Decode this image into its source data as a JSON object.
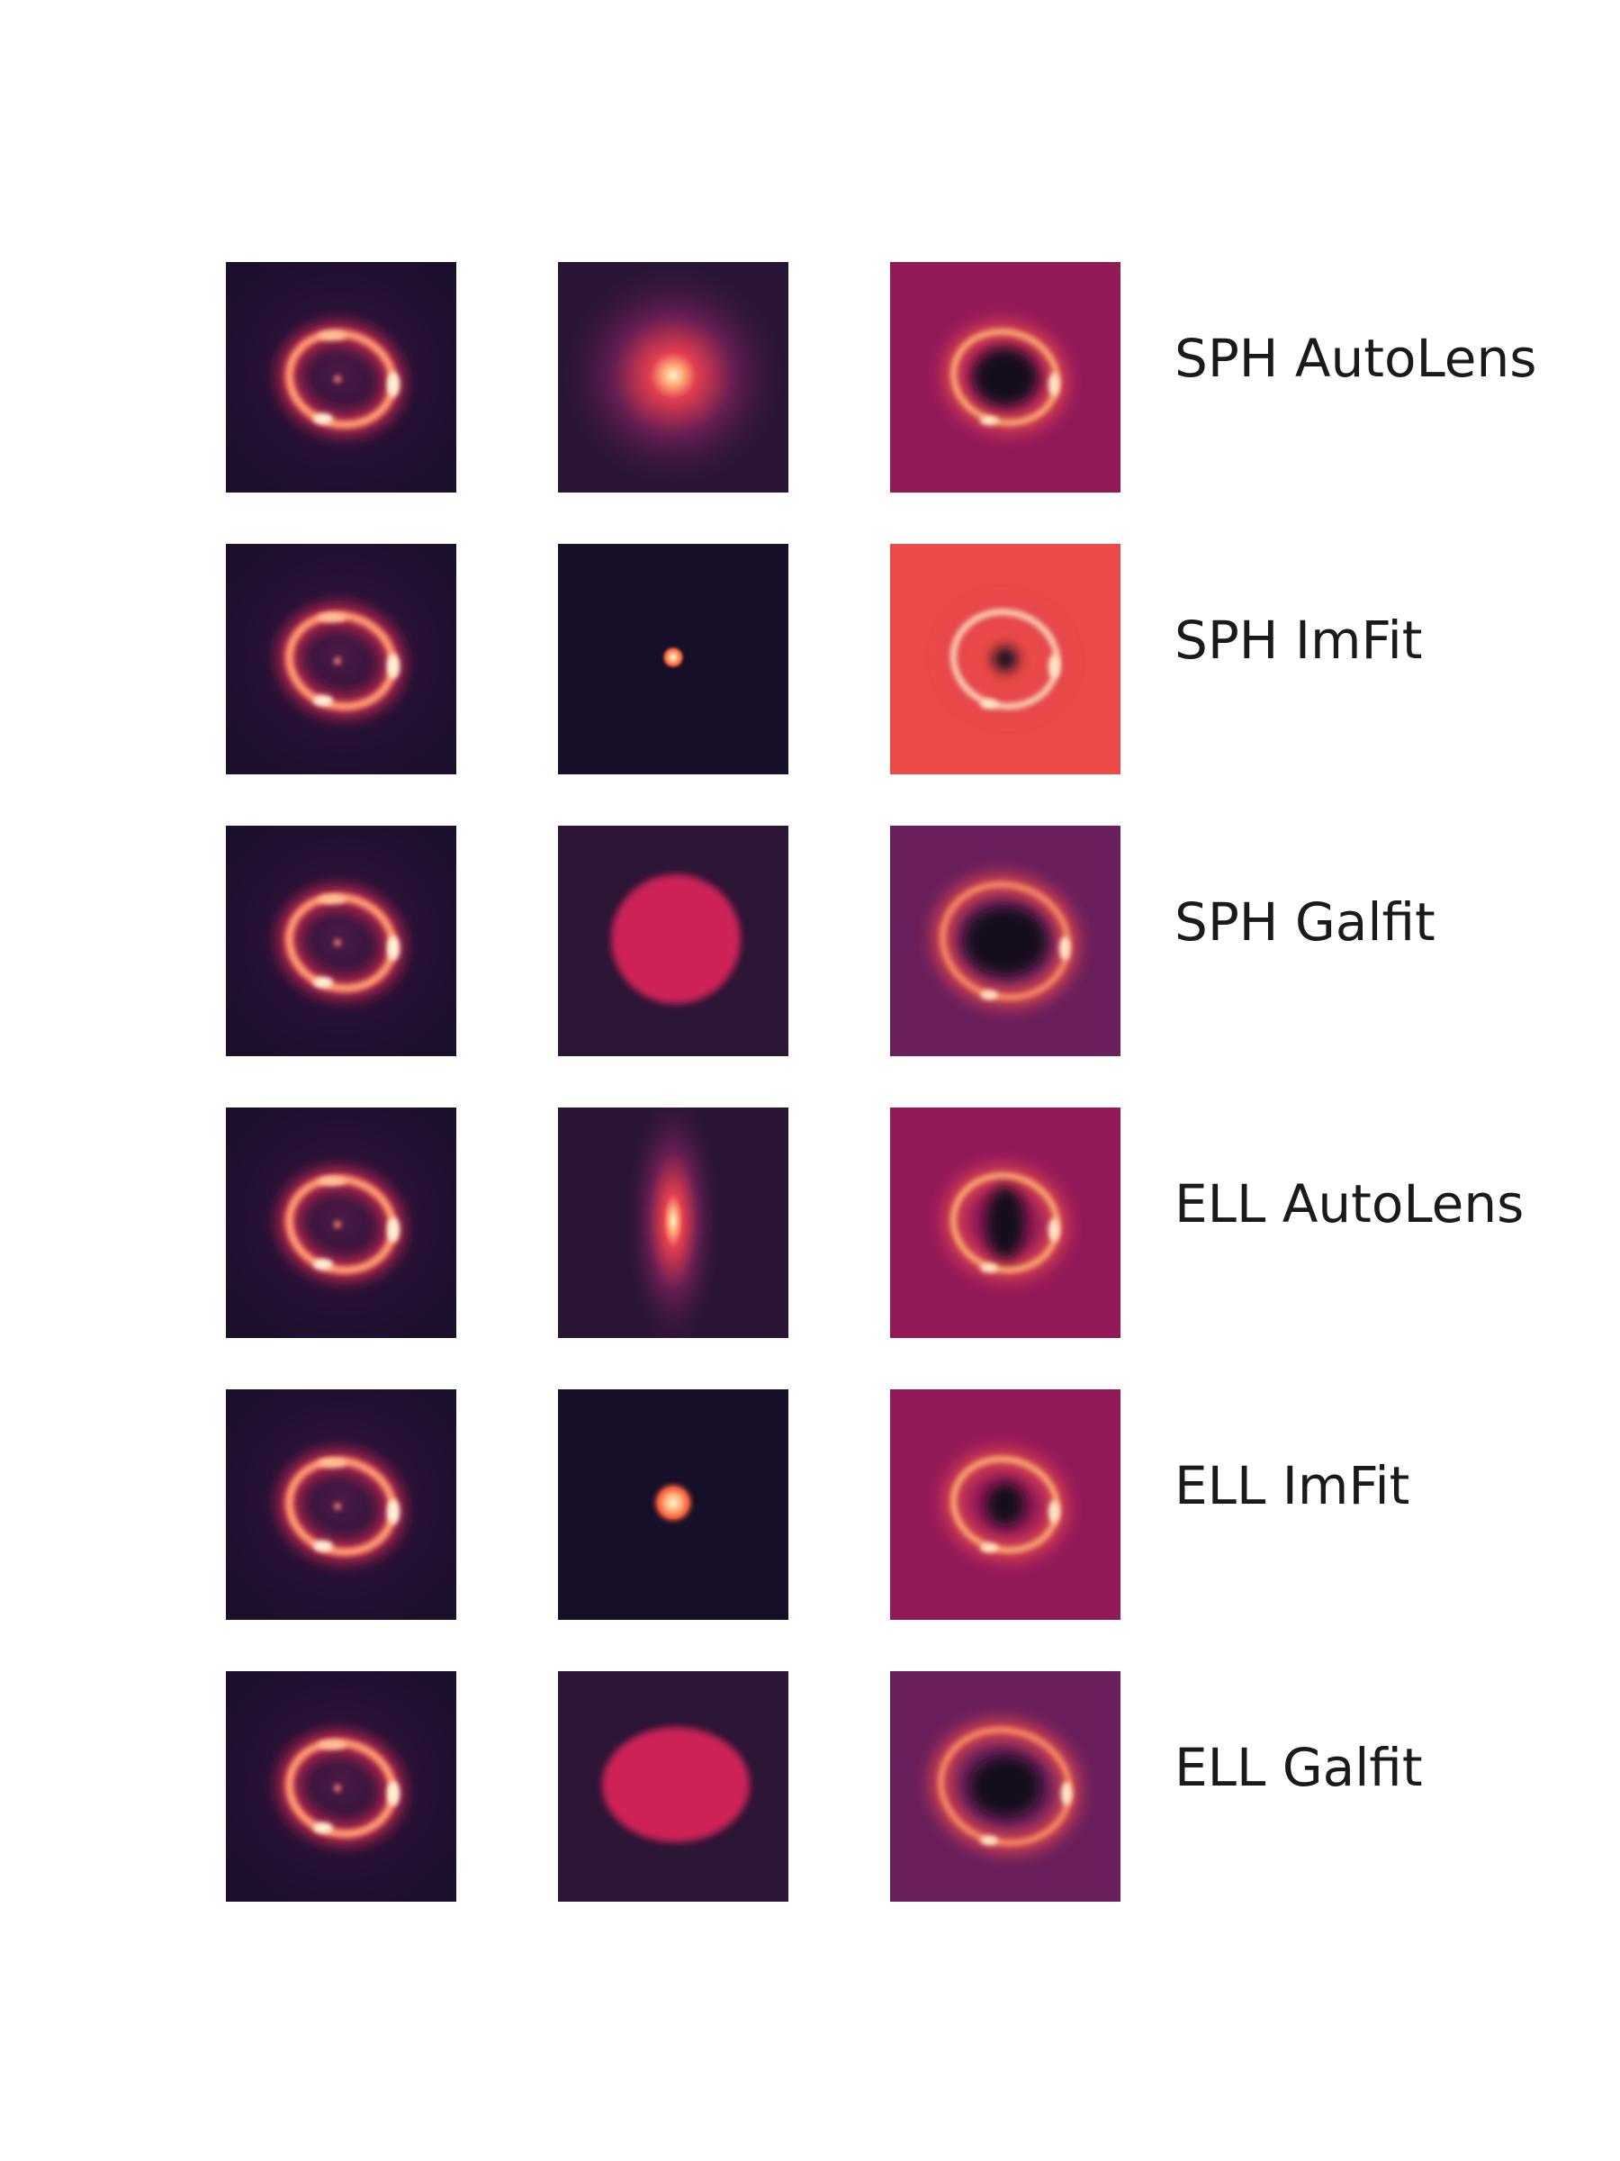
{
  "rows": [
    {
      "label": "SPH AutoLens",
      "data": {
        "ring_rx": 58,
        "ring_ry": 50,
        "ring_rotate": 15
      },
      "model": {
        "kind": "peak",
        "rx": 130,
        "ry": 130,
        "bg": "#2a1535",
        "core": "#fff3cf",
        "mid": "#e33d4f",
        "halo": "#6a1f52"
      },
      "residual": {
        "bg": "#931a59",
        "dark": "#140a1e",
        "dark_rx": 36,
        "dark_ry": 32,
        "ring": "#f7a86e",
        "ring_rx": 58,
        "ring_ry": 50
      }
    },
    {
      "label": "SPH ImFit",
      "data": {
        "ring_rx": 58,
        "ring_ry": 50,
        "ring_rotate": 15
      },
      "model": {
        "kind": "point",
        "rx": 14,
        "ry": 14,
        "bg": "#170f27",
        "core": "#fff3cf",
        "mid": "#f05a3a",
        "halo": "#3a1640"
      },
      "residual": {
        "bg": "#ea4a48",
        "dark": "#140a1e",
        "dark_rx": 14,
        "dark_ry": 14,
        "ring": "#f8d0b4",
        "ring_rx": 58,
        "ring_ry": 52
      }
    },
    {
      "label": "SPH Galfit",
      "data": {
        "ring_rx": 58,
        "ring_ry": 50,
        "ring_rotate": 15
      },
      "model": {
        "kind": "disk",
        "rx": 72,
        "ry": 72,
        "bg": "#2c1535",
        "core": "#cc2156",
        "mid": "#cc2156",
        "halo": "#cc2156"
      },
      "residual": {
        "bg": "#6a1f5c",
        "dark": "#140a1e",
        "dark_rx": 46,
        "dark_ry": 38,
        "ring": "#f48a62",
        "ring_rx": 70,
        "ring_ry": 62
      }
    },
    {
      "label": "ELL AutoLens",
      "data": {
        "ring_rx": 58,
        "ring_ry": 50,
        "ring_rotate": 15
      },
      "model": {
        "kind": "peak",
        "rx": 55,
        "ry": 150,
        "bg": "#2a1535",
        "core": "#fff3cf",
        "mid": "#e33d4f",
        "halo": "#6a1f52"
      },
      "residual": {
        "bg": "#931a59",
        "dark": "#140a1e",
        "dark_rx": 22,
        "dark_ry": 40,
        "ring": "#f7a86e",
        "ring_rx": 58,
        "ring_ry": 52
      }
    },
    {
      "label": "ELL ImFit",
      "data": {
        "ring_rx": 58,
        "ring_ry": 50,
        "ring_rotate": 15
      },
      "model": {
        "kind": "point",
        "rx": 26,
        "ry": 26,
        "bg": "#170f27",
        "core": "#fff3cf",
        "mid": "#f05a3a",
        "halo": "#3a1640"
      },
      "residual": {
        "bg": "#931a59",
        "dark": "#140a1e",
        "dark_rx": 22,
        "dark_ry": 24,
        "ring": "#f7a86e",
        "ring_rx": 58,
        "ring_ry": 50
      }
    },
    {
      "label": "ELL Galfit",
      "data": {
        "ring_rx": 58,
        "ring_ry": 50,
        "ring_rotate": 15
      },
      "model": {
        "kind": "disk",
        "rx": 82,
        "ry": 64,
        "bg": "#2c1535",
        "core": "#cc2156",
        "mid": "#cc2156",
        "halo": "#cc2156"
      },
      "residual": {
        "bg": "#6a1f5c",
        "dark": "#140a1e",
        "dark_rx": 40,
        "dark_ry": 34,
        "ring": "#f48a62",
        "ring_rx": 72,
        "ring_ry": 62
      }
    }
  ],
  "colors": {
    "data_bg": "#1c0f2c",
    "data_ring": "#ff9a6e",
    "data_ring_core": "#fff1d8",
    "label_text": "#1a1a1a"
  }
}
